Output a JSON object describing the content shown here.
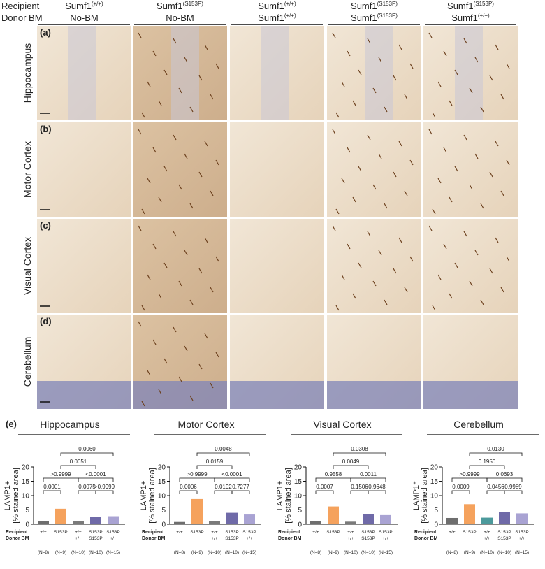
{
  "header": {
    "recipient_label": "Recipient",
    "donor_label": "Donor BM",
    "columns": [
      {
        "recipient": "Sumf1",
        "recipient_sup": "(+/+)",
        "donor": "No-BM"
      },
      {
        "recipient": "Sumf1",
        "recipient_sup": "(S153P)",
        "donor": "No-BM"
      },
      {
        "recipient": "Sumf1",
        "recipient_sup": "(+/+)",
        "donor": "Sumf1",
        "donor_sup": "(+/+)"
      },
      {
        "recipient": "Sumf1",
        "recipient_sup": "(S153P)",
        "donor": "Sumf1",
        "donor_sup": "(S153P)"
      },
      {
        "recipient": "Sumf1",
        "recipient_sup": "(S153P)",
        "donor": "Sumf1",
        "donor_sup": "(+/+)"
      }
    ]
  },
  "rows": [
    {
      "letter": "(a)",
      "label": "Hippocampus"
    },
    {
      "letter": "(b)",
      "label": "Motor Cortex"
    },
    {
      "letter": "(c)",
      "label": "Visual Cortex"
    },
    {
      "letter": "(d)",
      "label": "Cerebellum"
    }
  ],
  "panel_e_letter": "(e)",
  "chart_data": [
    {
      "type": "bar",
      "title": "Hippocampus",
      "y_label": [
        "LAMP1+",
        "[% stained area]"
      ],
      "row_labels": [
        "Recipient",
        "Donor BM"
      ],
      "recipient": [
        "+/+",
        "S153P",
        "+/+",
        "S153P",
        "S153P"
      ],
      "donor": [
        null,
        null,
        "+/+",
        "S153P",
        "+/+"
      ],
      "n": [
        "(N=8)",
        "(N=9)",
        "(N=10)",
        "(N=10)",
        "(N=15)"
      ],
      "values": [
        1.0,
        5.4,
        1.0,
        2.6,
        2.8
      ],
      "colors": [
        "#6e6e6e",
        "#f5a25d",
        "#7a7a7a",
        "#6f6aa8",
        "#a9a3d3"
      ],
      "ylim": [
        0,
        20
      ],
      "yticks": [
        0,
        5,
        10,
        15,
        20
      ],
      "p_values": [
        "0.0001",
        "0.0075",
        ">0.9999",
        ">0.9999",
        "<0.0001",
        "0.0051",
        "0.0060"
      ]
    },
    {
      "type": "bar",
      "title": "Motor Cortex",
      "y_label": [
        "LAMP1+",
        "[% stained area]"
      ],
      "row_labels": [
        "Recipient",
        "Donor BM"
      ],
      "recipient": [
        "+/+",
        "S153P",
        "+/+",
        "S153P",
        "S153P"
      ],
      "donor": [
        null,
        null,
        "+/+",
        "S153P",
        "+/+"
      ],
      "n": [
        "(N=8)",
        "(N=9)",
        "(N=10)",
        "(N=10)",
        "(N=15)"
      ],
      "values": [
        0.8,
        8.8,
        1.0,
        4.0,
        3.4
      ],
      "colors": [
        "#6e6e6e",
        "#f5a25d",
        "#7a7a7a",
        "#6f6aa8",
        "#a9a3d3"
      ],
      "ylim": [
        0,
        20
      ],
      "yticks": [
        0,
        5,
        10,
        15,
        20
      ],
      "p_values": [
        "0.0006",
        "0.0192",
        "0.7277",
        ">0.9999",
        "<0.0001",
        "0.0159",
        "0.0048"
      ]
    },
    {
      "type": "bar",
      "title": "Visual Cortex",
      "y_label": [
        "LAMP1+",
        "[% stained area]"
      ],
      "row_labels": [
        "Recipient",
        "Donor BM"
      ],
      "recipient": [
        "+/+",
        "S153P",
        "+/+",
        "S153P",
        "S153P"
      ],
      "donor": [
        null,
        null,
        "+/+",
        "S153P",
        "+/+"
      ],
      "n": [
        "(N=8)",
        "(N=9)",
        "(N=10)",
        "(N=10)",
        "(N=15)"
      ],
      "values": [
        1.0,
        6.2,
        0.9,
        3.5,
        3.2
      ],
      "colors": [
        "#6e6e6e",
        "#f5a25d",
        "#7a7a7a",
        "#6f6aa8",
        "#a9a3d3"
      ],
      "ylim": [
        0,
        20
      ],
      "yticks": [
        0,
        5,
        10,
        15,
        20
      ],
      "p_values": [
        "0.0007",
        "0.1506",
        "0.9648",
        "0.9558",
        "0.0011",
        "0.0049",
        "0.0308"
      ]
    },
    {
      "type": "bar",
      "title": "Cerebellum",
      "y_label": [
        "LAMP1⁺",
        "[% stained area]"
      ],
      "row_labels": [
        "Recipient",
        "Donor BM"
      ],
      "recipient": [
        "+/+",
        "S153P",
        "+/+",
        "S153P",
        "S153P"
      ],
      "donor": [
        null,
        null,
        "+/+",
        "S153P",
        "+/+"
      ],
      "n": [
        "(N=8)",
        "(N=9)",
        "(N=10)",
        "(N=10)",
        "(N=15)"
      ],
      "values": [
        2.2,
        7.0,
        2.3,
        4.3,
        3.8
      ],
      "colors": [
        "#6e6e6e",
        "#f5a25d",
        "#4c9a9c",
        "#6f6aa8",
        "#a9a3d3"
      ],
      "ylim": [
        0,
        20
      ],
      "yticks": [
        0,
        5,
        10,
        15,
        20
      ],
      "p_values": [
        "0.0009",
        "0.0456",
        "0.9989",
        ">0.9999",
        "0.0693",
        "0.1950",
        "0.0130"
      ]
    }
  ]
}
